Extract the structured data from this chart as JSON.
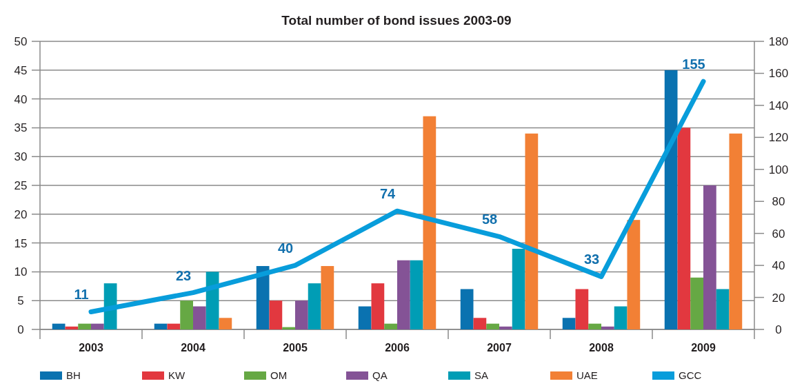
{
  "chart_data": {
    "type": "bar",
    "title": "Total number of bond issues 2003-09",
    "categories": [
      "2003",
      "2004",
      "2005",
      "2006",
      "2007",
      "2008",
      "2009"
    ],
    "series": [
      {
        "name": "BH",
        "color": "#0a72b0",
        "values": [
          1,
          1,
          11,
          4,
          7,
          2,
          45
        ]
      },
      {
        "name": "KW",
        "color": "#e2383f",
        "values": [
          0.5,
          1,
          5,
          8,
          2,
          7,
          35
        ]
      },
      {
        "name": "OM",
        "color": "#66a844",
        "values": [
          1,
          5,
          0.4,
          1,
          1,
          1,
          9
        ]
      },
      {
        "name": "QA",
        "color": "#845396",
        "values": [
          1,
          4,
          5,
          12,
          0.5,
          0.5,
          25
        ]
      },
      {
        "name": "SA",
        "color": "#009db5",
        "values": [
          8,
          10,
          8,
          12,
          14,
          4,
          7
        ]
      },
      {
        "name": "UAE",
        "color": "#f28035",
        "values": [
          0,
          2,
          11,
          37,
          34,
          19,
          34
        ]
      },
      {
        "name": "GCC",
        "color": "#089ddb",
        "type": "line",
        "axis": "y2",
        "values": [
          11,
          23,
          40,
          74,
          58,
          33,
          155
        ],
        "data_labels": true
      }
    ],
    "ylim": [
      0,
      50
    ],
    "yticks": [
      0,
      5,
      10,
      15,
      20,
      25,
      30,
      35,
      40,
      45,
      50
    ],
    "y2lim": [
      0,
      180
    ],
    "y2ticks": [
      0,
      20,
      40,
      60,
      80,
      100,
      120,
      140,
      160,
      180
    ],
    "grid": "y",
    "legend": "bottom"
  }
}
